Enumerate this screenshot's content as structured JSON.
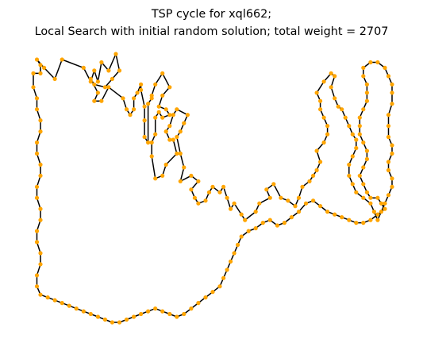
{
  "chart_data": {
    "type": "line",
    "title": "TSP cycle for xql662;",
    "subtitle": "Local Search with initial random solution; total weight = 2707",
    "xlabel": "",
    "ylabel": "",
    "axes_visible": false,
    "grid": false,
    "legend": null,
    "colors": {
      "edge": "#000000",
      "node": "#ffa500"
    },
    "series": [
      {
        "closed": true,
        "points": [
          [
            0,
            95
          ],
          [
            2,
            95
          ],
          [
            2,
            98
          ],
          [
            1,
            100
          ],
          [
            3,
            97
          ],
          [
            6,
            93
          ],
          [
            8,
            100
          ],
          [
            14,
            97
          ],
          [
            16,
            92
          ],
          [
            17,
            96
          ],
          [
            18,
            92
          ],
          [
            19,
            99
          ],
          [
            21,
            96
          ],
          [
            23,
            102
          ],
          [
            24,
            96
          ],
          [
            22,
            93
          ],
          [
            20,
            90
          ],
          [
            17,
            91
          ],
          [
            16,
            93
          ],
          [
            18,
            88
          ],
          [
            17,
            85
          ],
          [
            19,
            85
          ],
          [
            21,
            90
          ],
          [
            25,
            86
          ],
          [
            26,
            82
          ],
          [
            27,
            80
          ],
          [
            28,
            82
          ],
          [
            28,
            86
          ],
          [
            29,
            88
          ],
          [
            30,
            91
          ],
          [
            30,
            89
          ],
          [
            31,
            83
          ],
          [
            31,
            78
          ],
          [
            31,
            72
          ],
          [
            32,
            70
          ],
          [
            32,
            84
          ],
          [
            33,
            86
          ],
          [
            33,
            87
          ],
          [
            34,
            91
          ],
          [
            36,
            95
          ],
          [
            38,
            90
          ],
          [
            36,
            87
          ],
          [
            35,
            83
          ],
          [
            37,
            82
          ],
          [
            38,
            80
          ],
          [
            36,
            79
          ],
          [
            35,
            81
          ],
          [
            34,
            79
          ],
          [
            34,
            73
          ],
          [
            33,
            70
          ],
          [
            33,
            65
          ],
          [
            34,
            57
          ],
          [
            36,
            58
          ],
          [
            37,
            62
          ],
          [
            40,
            66
          ],
          [
            39,
            71
          ],
          [
            38,
            71
          ],
          [
            37,
            74
          ],
          [
            38,
            76
          ],
          [
            39,
            80
          ],
          [
            40,
            82
          ],
          [
            43,
            80
          ],
          [
            42,
            77
          ],
          [
            41,
            74
          ],
          [
            40,
            72
          ],
          [
            41,
            66
          ],
          [
            42,
            61
          ],
          [
            41,
            56
          ],
          [
            44,
            58
          ],
          [
            46,
            56
          ],
          [
            44,
            53
          ],
          [
            45,
            50
          ],
          [
            46,
            48
          ],
          [
            48,
            49
          ],
          [
            49,
            52
          ],
          [
            50,
            54
          ],
          [
            52,
            52
          ],
          [
            53,
            54
          ],
          [
            54,
            50
          ],
          [
            55,
            46
          ],
          [
            56,
            48
          ],
          [
            58,
            44
          ],
          [
            59,
            42
          ],
          [
            62,
            45
          ],
          [
            63,
            48
          ],
          [
            66,
            50
          ],
          [
            65,
            53
          ],
          [
            67,
            55
          ],
          [
            69,
            50
          ],
          [
            71,
            49
          ],
          [
            73,
            47
          ],
          [
            74,
            50
          ],
          [
            75,
            54
          ],
          [
            77,
            56
          ],
          [
            78,
            58
          ],
          [
            79,
            60
          ],
          [
            80,
            63
          ],
          [
            79,
            67
          ],
          [
            81,
            70
          ],
          [
            82,
            73
          ],
          [
            82,
            76
          ],
          [
            81,
            79
          ],
          [
            80,
            82
          ],
          [
            80,
            85
          ],
          [
            79,
            88
          ],
          [
            81,
            92
          ],
          [
            83,
            95
          ],
          [
            84,
            94
          ],
          [
            83,
            90
          ],
          [
            84,
            86
          ],
          [
            85,
            83
          ],
          [
            86,
            82
          ],
          [
            87,
            79
          ],
          [
            88,
            76
          ],
          [
            89,
            73
          ],
          [
            90,
            71
          ],
          [
            90,
            68
          ],
          [
            89,
            65
          ],
          [
            88,
            62
          ],
          [
            88,
            58
          ],
          [
            89,
            55
          ],
          [
            90,
            52
          ],
          [
            92,
            50
          ],
          [
            94,
            48
          ],
          [
            95,
            45
          ],
          [
            96,
            42
          ],
          [
            97,
            45
          ],
          [
            98,
            48
          ],
          [
            99,
            51
          ],
          [
            100,
            54
          ],
          [
            100,
            57
          ],
          [
            99,
            60
          ],
          [
            99,
            63
          ],
          [
            100,
            66
          ],
          [
            100,
            69
          ],
          [
            99,
            72
          ],
          [
            99,
            76
          ],
          [
            99,
            80
          ],
          [
            100,
            84
          ],
          [
            100,
            88
          ],
          [
            100,
            91
          ],
          [
            99,
            94
          ],
          [
            98,
            97
          ],
          [
            96,
            99
          ],
          [
            94,
            99
          ],
          [
            92,
            97
          ],
          [
            92,
            94
          ],
          [
            93,
            91
          ],
          [
            93,
            88
          ],
          [
            93,
            85
          ],
          [
            92,
            82
          ],
          [
            91,
            79
          ],
          [
            91,
            76
          ],
          [
            91,
            73
          ],
          [
            92,
            70
          ],
          [
            93,
            67
          ],
          [
            93,
            64
          ],
          [
            92,
            61
          ],
          [
            91,
            58
          ],
          [
            92,
            55
          ],
          [
            93,
            52
          ],
          [
            94,
            50
          ],
          [
            96,
            50
          ],
          [
            97,
            48
          ],
          [
            98,
            46
          ],
          [
            96,
            44
          ],
          [
            94,
            42
          ],
          [
            92,
            41
          ],
          [
            90,
            41
          ],
          [
            88,
            42
          ],
          [
            86,
            43
          ],
          [
            84,
            44
          ],
          [
            82,
            45
          ],
          [
            80,
            47
          ],
          [
            78,
            49
          ],
          [
            76,
            48
          ],
          [
            74,
            45
          ],
          [
            72,
            43
          ],
          [
            70,
            41
          ],
          [
            68,
            40
          ],
          [
            66,
            42
          ],
          [
            64,
            41
          ],
          [
            62,
            39
          ],
          [
            60,
            38
          ],
          [
            58,
            36
          ],
          [
            57,
            33
          ],
          [
            56,
            30
          ],
          [
            55,
            27
          ],
          [
            54,
            24
          ],
          [
            53,
            21
          ],
          [
            52,
            18
          ],
          [
            50,
            16
          ],
          [
            48,
            14
          ],
          [
            46,
            12
          ],
          [
            44,
            10
          ],
          [
            42,
            8
          ],
          [
            40,
            7
          ],
          [
            38,
            8
          ],
          [
            36,
            9
          ],
          [
            34,
            10
          ],
          [
            32,
            9
          ],
          [
            30,
            8
          ],
          [
            28,
            7
          ],
          [
            26,
            6
          ],
          [
            24,
            5
          ],
          [
            22,
            5
          ],
          [
            20,
            6
          ],
          [
            18,
            7
          ],
          [
            16,
            8
          ],
          [
            14,
            9
          ],
          [
            12,
            10
          ],
          [
            10,
            11
          ],
          [
            8,
            12
          ],
          [
            6,
            13
          ],
          [
            4,
            14
          ],
          [
            2,
            15
          ],
          [
            1,
            18
          ],
          [
            1,
            22
          ],
          [
            2,
            26
          ],
          [
            2,
            30
          ],
          [
            1,
            34
          ],
          [
            1,
            38
          ],
          [
            2,
            42
          ],
          [
            2,
            46
          ],
          [
            1,
            50
          ],
          [
            1,
            54
          ],
          [
            2,
            58
          ],
          [
            2,
            62
          ],
          [
            1,
            66
          ],
          [
            1,
            70
          ],
          [
            2,
            74
          ],
          [
            2,
            78
          ],
          [
            1,
            82
          ],
          [
            1,
            86
          ],
          [
            0,
            90
          ]
        ]
      }
    ]
  }
}
